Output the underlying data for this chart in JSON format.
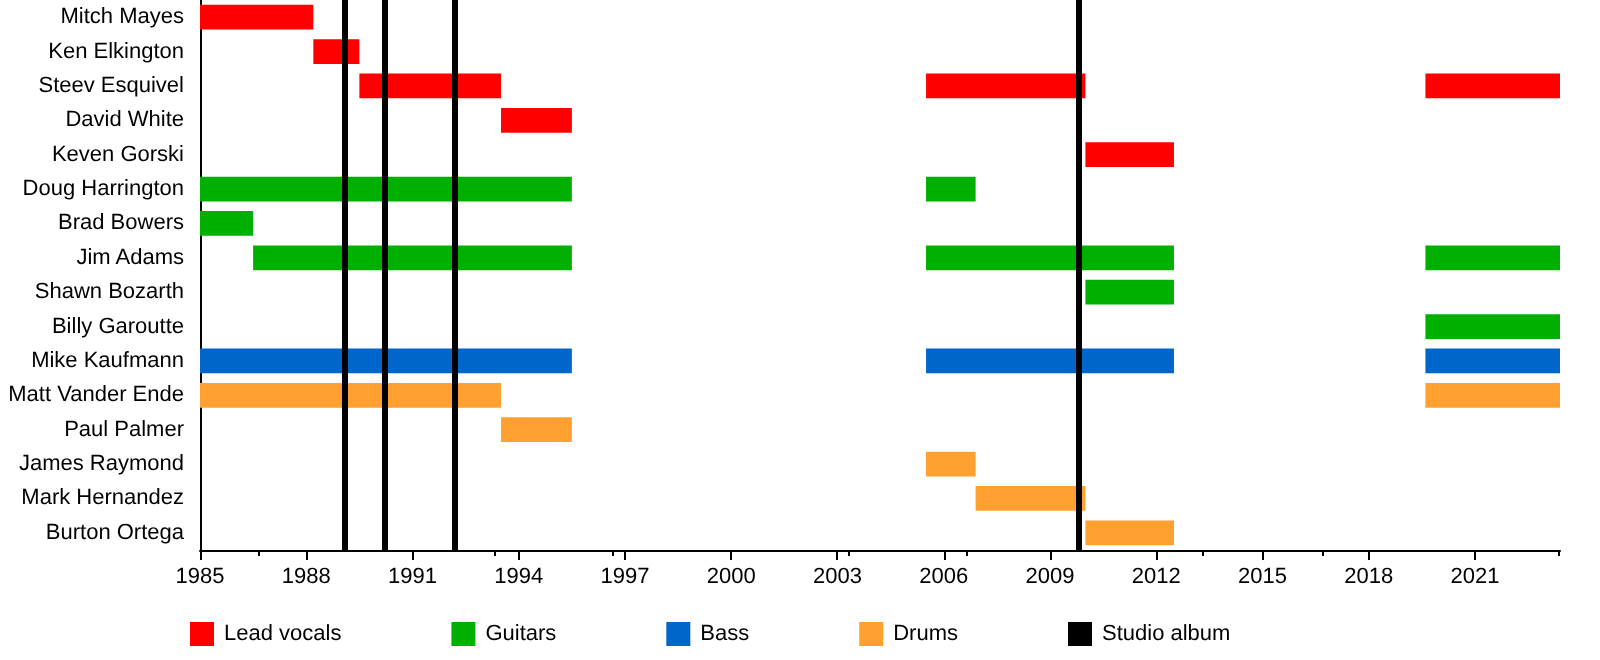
{
  "chart_data": {
    "type": "bar",
    "orientation": "horizontal",
    "legend": "bottom",
    "grid": false,
    "categories": [
      "Mitch Mayes",
      "Ken Elkington",
      "Steev Esquivel",
      "David White",
      "Keven Gorski",
      "Doug Harrington",
      "Brad Bowers",
      "Jim Adams",
      "Shawn Bozarth",
      "Billy Garoutte",
      "Mike Kaufmann",
      "Matt Vander Ende",
      "Paul Palmer",
      "James Raymond",
      "Mark Hernandez",
      "Burton Ortega"
    ],
    "xlim": [
      1985,
      2023.4
    ],
    "xticks": [
      1985,
      1988,
      1991,
      1994,
      1997,
      2000,
      2003,
      2006,
      2009,
      2012,
      2015,
      2018,
      2021
    ],
    "series": [
      {
        "name": "Lead vocals",
        "color": "#ff0000",
        "base": [
          1985,
          1988.2,
          1989.5,
          1993.5,
          null,
          null,
          null,
          null,
          null,
          null,
          null,
          null,
          null,
          null,
          null,
          null
        ],
        "values": [
          3.2,
          1.3,
          4.0,
          2.0,
          null,
          null,
          null,
          null,
          null,
          null,
          null,
          null,
          null,
          null,
          null,
          null
        ]
      },
      {
        "color": "#ff0000",
        "base": [
          null,
          null,
          2005.5,
          null,
          2010,
          null,
          null,
          null,
          null,
          null,
          null,
          null,
          null,
          null,
          null,
          null
        ],
        "values": [
          null,
          null,
          4.5,
          null,
          2.5,
          null,
          null,
          null,
          null,
          null,
          null,
          null,
          null,
          null,
          null,
          null
        ]
      },
      {
        "color": "#ff0000",
        "base": [
          null,
          null,
          2019.6,
          null,
          null,
          null,
          null,
          null,
          null,
          null,
          null,
          null,
          null,
          null,
          null,
          null
        ],
        "values": [
          null,
          null,
          3.8,
          null,
          null,
          null,
          null,
          null,
          null,
          null,
          null,
          null,
          null,
          null,
          null,
          null
        ]
      },
      {
        "name": "Guitars",
        "color": "#00b000",
        "base": [
          null,
          null,
          null,
          null,
          null,
          1985,
          1985,
          1986.5,
          null,
          null,
          null,
          null,
          null,
          null,
          null,
          null
        ],
        "values": [
          null,
          null,
          null,
          null,
          null,
          10.5,
          1.5,
          9.0,
          null,
          null,
          null,
          null,
          null,
          null,
          null,
          null
        ]
      },
      {
        "color": "#00b000",
        "base": [
          null,
          null,
          null,
          null,
          null,
          2005.5,
          null,
          2005.5,
          2010,
          null,
          null,
          null,
          null,
          null,
          null,
          null
        ],
        "values": [
          null,
          null,
          null,
          null,
          null,
          1.4,
          null,
          7.0,
          2.5,
          null,
          null,
          null,
          null,
          null,
          null,
          null
        ]
      },
      {
        "color": "#00b000",
        "base": [
          null,
          null,
          null,
          null,
          null,
          null,
          null,
          2019.6,
          null,
          2019.6,
          null,
          null,
          null,
          null,
          null,
          null
        ],
        "values": [
          null,
          null,
          null,
          null,
          null,
          null,
          null,
          3.8,
          null,
          3.8,
          null,
          null,
          null,
          null,
          null,
          null
        ]
      },
      {
        "name": "Bass",
        "color": "#0066cc",
        "base": [
          null,
          null,
          null,
          null,
          null,
          null,
          null,
          null,
          null,
          null,
          1985,
          null,
          null,
          null,
          null,
          null
        ],
        "values": [
          null,
          null,
          null,
          null,
          null,
          null,
          null,
          null,
          null,
          null,
          10.5,
          null,
          null,
          null,
          null,
          null
        ]
      },
      {
        "color": "#0066cc",
        "base": [
          null,
          null,
          null,
          null,
          null,
          null,
          null,
          null,
          null,
          null,
          2005.5,
          null,
          null,
          null,
          null,
          null
        ],
        "values": [
          null,
          null,
          null,
          null,
          null,
          null,
          null,
          null,
          null,
          null,
          7.0,
          null,
          null,
          null,
          null,
          null
        ]
      },
      {
        "color": "#0066cc",
        "base": [
          null,
          null,
          null,
          null,
          null,
          null,
          null,
          null,
          null,
          null,
          2019.6,
          null,
          null,
          null,
          null,
          null
        ],
        "values": [
          null,
          null,
          null,
          null,
          null,
          null,
          null,
          null,
          null,
          null,
          3.8,
          null,
          null,
          null,
          null,
          null
        ]
      },
      {
        "name": "Drums",
        "color": "#ffa030",
        "base": [
          null,
          null,
          null,
          null,
          null,
          null,
          null,
          null,
          null,
          null,
          null,
          1985,
          1993.5,
          null,
          null,
          null
        ],
        "values": [
          null,
          null,
          null,
          null,
          null,
          null,
          null,
          null,
          null,
          null,
          null,
          8.5,
          2.0,
          null,
          null,
          null
        ]
      },
      {
        "color": "#ffa030",
        "base": [
          null,
          null,
          null,
          null,
          null,
          null,
          null,
          null,
          null,
          null,
          null,
          null,
          null,
          2005.5,
          2006.9,
          2010
        ],
        "values": [
          null,
          null,
          null,
          null,
          null,
          null,
          null,
          null,
          null,
          null,
          null,
          null,
          null,
          1.4,
          3.1,
          2.5
        ]
      },
      {
        "color": "#ffa030",
        "base": [
          null,
          null,
          null,
          null,
          null,
          null,
          null,
          null,
          null,
          null,
          null,
          2019.6,
          null,
          null,
          null,
          null
        ],
        "values": [
          null,
          null,
          null,
          null,
          null,
          null,
          null,
          null,
          null,
          null,
          null,
          3.8,
          null,
          null,
          null,
          null
        ]
      }
    ],
    "ref_lines": [
      {
        "axis": "x",
        "value": 1989.1,
        "label": "Studio album",
        "color": "#000000"
      },
      {
        "axis": "x",
        "value": 1990.2,
        "color": "#000000"
      },
      {
        "axis": "x",
        "value": 1992.2,
        "color": "#000000"
      },
      {
        "axis": "x",
        "value": 2009.8,
        "color": "#000000"
      }
    ]
  }
}
